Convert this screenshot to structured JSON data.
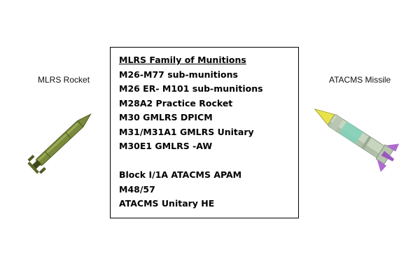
{
  "labels": {
    "left": "MLRS Rocket",
    "right": "ATACMS Missile"
  },
  "munitions_box": {
    "title": "MLRS Family of Munitions",
    "group1": [
      "M26-M77 sub-munitions",
      "M26 ER- M101 sub-munitions",
      "M28A2 Practice Rocket",
      "M30 GMLRS DPICM",
      "M31/M31A1 GMLRS Unitary",
      "M30E1 GMLRS -AW"
    ],
    "group2": [
      "Block I/1A ATACMS APAM",
      "M48/57",
      "ATACMS Unitary HE"
    ]
  },
  "colors": {
    "rocket_body": "#7a8a3c",
    "rocket_dark": "#4f5a22",
    "missile_nose": "#e8e24a",
    "missile_body": "#c8d6c0",
    "missile_band": "#7fd1b8",
    "missile_fin": "#b06ad0",
    "text": "#000000"
  },
  "icons": {
    "left": "mlrs-rocket-image",
    "right": "atacms-missile-image"
  }
}
